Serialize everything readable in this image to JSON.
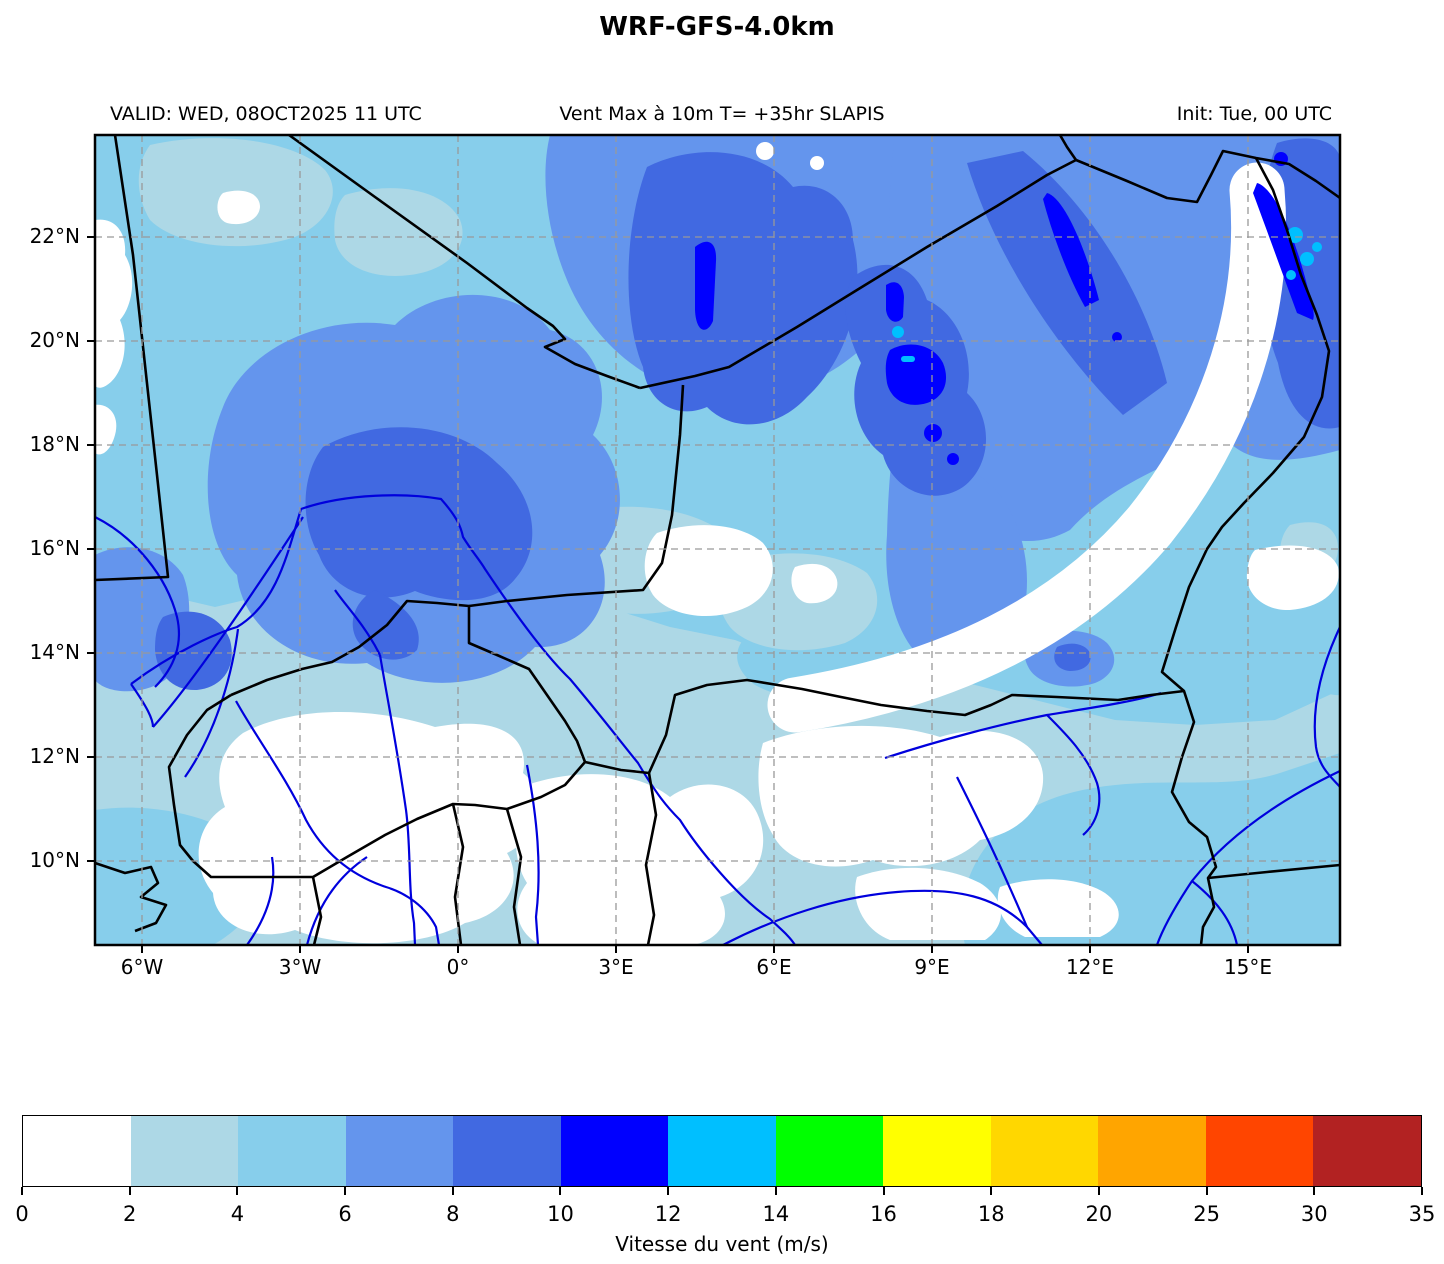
{
  "title": "WRF-GFS-4.0km",
  "header": {
    "valid": "VALID: WED, 08OCT2025 11 UTC",
    "product": "Vent Max à 10m T= +35hr SLAPIS",
    "init": "Init: Tue, 00 UTC"
  },
  "map": {
    "lat_labels": [
      "22°N",
      "20°N",
      "18°N",
      "16°N",
      "14°N",
      "12°N",
      "10°N"
    ],
    "lon_labels": [
      "6°W",
      "3°W",
      "0°",
      "3°E",
      "6°E",
      "9°E",
      "12°E",
      "15°E"
    ]
  },
  "colorbar": {
    "label": "Vitesse du vent (m/s)",
    "tick_labels": [
      "0",
      "2",
      "4",
      "6",
      "8",
      "10",
      "12",
      "14",
      "16",
      "18",
      "20",
      "25",
      "30",
      "35"
    ],
    "segment_colors": [
      "#ffffff",
      "#add8e6",
      "#87ceeb",
      "#6495ed",
      "#4169e1",
      "#0000ff",
      "#00bfff",
      "#00ff00",
      "#ffff00",
      "#ffd700",
      "#ffa500",
      "#ff4500",
      "#b22222"
    ]
  },
  "chart_data": {
    "type": "heatmap",
    "title": "WRF-GFS-4.0km",
    "subtitle_left": "VALID: WED, 08OCT2025 11 UTC",
    "subtitle_center": "Vent Max à 10m T= +35hr SLAPIS",
    "subtitle_right": "Init: Tue, 00 UTC",
    "variable": "Vitesse du vent (m/s)",
    "x_ticks": [
      "6°W",
      "3°W",
      "0°",
      "3°E",
      "6°E",
      "9°E",
      "12°E",
      "15°E"
    ],
    "y_ticks": [
      "22°N",
      "20°N",
      "18°N",
      "16°N",
      "14°N",
      "12°N",
      "10°N"
    ],
    "colorbar_bounds": [
      0,
      2,
      4,
      6,
      8,
      10,
      12,
      14,
      16,
      18,
      20,
      25,
      30,
      35
    ],
    "colorbar_colors": [
      "#ffffff",
      "#add8e6",
      "#87ceeb",
      "#6495ed",
      "#4169e1",
      "#0000ff",
      "#00bfff",
      "#00ff00",
      "#ffff00",
      "#ffd700",
      "#ffa500",
      "#ff4500",
      "#b22222"
    ],
    "max_category_visible_on_map": "12-14 m/s",
    "grid": true,
    "legend_position": "bottom horizontal colorbar"
  }
}
